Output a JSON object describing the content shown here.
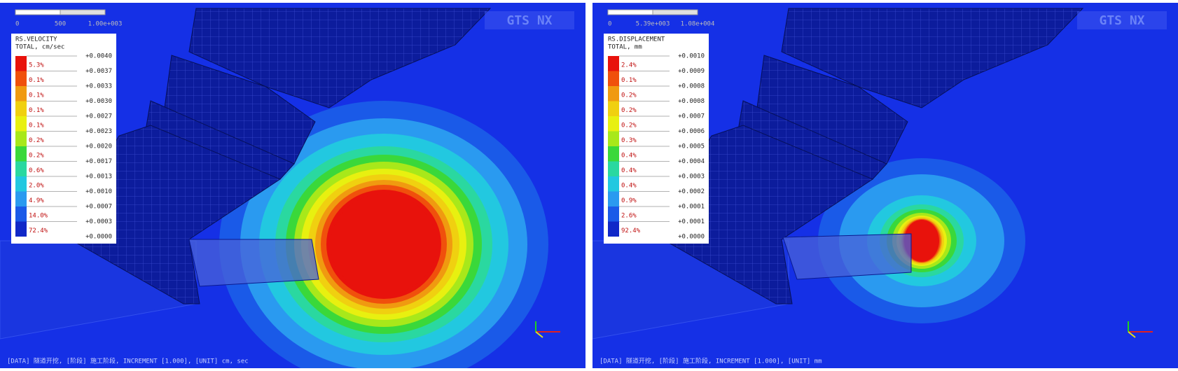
{
  "panels": [
    {
      "scale_labels": [
        "0",
        "500",
        "1.00e+003"
      ],
      "logo": "GTS NX",
      "legend": {
        "title": "RS.VELOCITY",
        "subtitle": "TOTAL, cm/sec",
        "values": [
          "+0.0040",
          "+0.0037",
          "+0.0033",
          "+0.0030",
          "+0.0027",
          "+0.0023",
          "+0.0020",
          "+0.0017",
          "+0.0013",
          "+0.0010",
          "+0.0007",
          "+0.0003",
          "+0.0000"
        ],
        "percents": [
          "5.3%",
          "0.1%",
          "0.1%",
          "0.1%",
          "0.1%",
          "0.2%",
          "0.2%",
          "0.6%",
          "2.0%",
          "4.9%",
          "14.0%",
          "72.4%"
        ]
      },
      "footer": "[DATA] 隧道开挖, [阶段] 施工阶段, INCREMENT [1.000], [UNIT] cm, sec"
    },
    {
      "scale_labels": [
        "0",
        "5.39e+003",
        "1.08e+004"
      ],
      "logo": "GTS NX",
      "legend": {
        "title": "RS.DISPLACEMENT",
        "subtitle": "TOTAL, mm",
        "values": [
          "+0.0010",
          "+0.0009",
          "+0.0008",
          "+0.0008",
          "+0.0007",
          "+0.0006",
          "+0.0005",
          "+0.0004",
          "+0.0003",
          "+0.0002",
          "+0.0001",
          "+0.0001",
          "+0.0000"
        ],
        "percents": [
          "2.4%",
          "0.1%",
          "0.2%",
          "0.2%",
          "0.2%",
          "0.3%",
          "0.4%",
          "0.4%",
          "0.4%",
          "0.9%",
          "2.6%",
          "92.4%"
        ]
      },
      "footer": "[DATA] 隧道开挖, [阶段] 施工阶段, INCREMENT [1.000], [UNIT] mm"
    }
  ]
}
